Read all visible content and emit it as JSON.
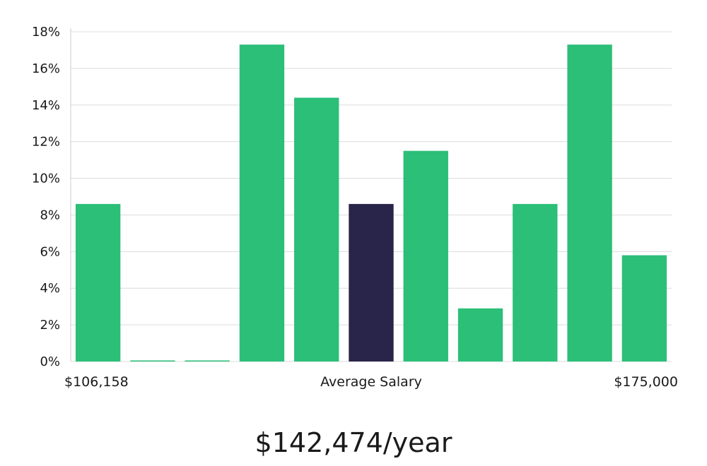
{
  "chart_data": {
    "type": "bar",
    "categories": [
      "1",
      "2",
      "3",
      "4",
      "5",
      "6",
      "7",
      "8",
      "9",
      "10",
      "11"
    ],
    "values": [
      8.6,
      0,
      0,
      17.3,
      14.4,
      8.6,
      11.5,
      2.9,
      8.6,
      17.3,
      5.8
    ],
    "highlight_index": 5,
    "ylim": [
      0,
      18
    ],
    "yticks": [
      0,
      2,
      4,
      6,
      8,
      10,
      12,
      14,
      16,
      18
    ],
    "ytick_suffix": "%",
    "grid": true,
    "x_labels": {
      "left": "$106,158",
      "center": "Average Salary",
      "right": "$175,000"
    },
    "colors": {
      "bar": "#2bbf78",
      "highlight": "#28244a",
      "grid": "#dcdcdc"
    }
  },
  "salary_text": "$142,474/year"
}
